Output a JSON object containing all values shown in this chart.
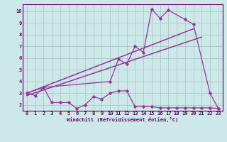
{
  "background_color": "#cce8e8",
  "grid_color": "#b0cccc",
  "line_color": "#993399",
  "xlim": [
    -0.5,
    23.5
  ],
  "ylim": [
    1.5,
    10.6
  ],
  "yticks": [
    2,
    3,
    4,
    5,
    6,
    7,
    8,
    9,
    10
  ],
  "xticks": [
    0,
    1,
    2,
    3,
    4,
    5,
    6,
    7,
    8,
    9,
    10,
    11,
    12,
    13,
    14,
    15,
    16,
    17,
    18,
    19,
    20,
    21,
    22,
    23
  ],
  "xlabel": "Windchill (Refroidissement éolien,°C)",
  "low_x": [
    0,
    1,
    2,
    3,
    4,
    5,
    6,
    7,
    8,
    9,
    10,
    11,
    12,
    13,
    14,
    15,
    16,
    17,
    18,
    19,
    20,
    21,
    22,
    23
  ],
  "low_y": [
    3.0,
    2.8,
    3.5,
    2.2,
    2.2,
    2.2,
    1.7,
    2.0,
    2.7,
    2.5,
    3.0,
    3.2,
    3.2,
    1.85,
    1.85,
    1.85,
    1.75,
    1.75,
    1.75,
    1.75,
    1.75,
    1.75,
    1.75,
    1.7
  ],
  "high_x": [
    0,
    2,
    10,
    11,
    12,
    13,
    14,
    15,
    16,
    17,
    19,
    20,
    22,
    23
  ],
  "high_y": [
    3.0,
    3.5,
    4.0,
    5.9,
    5.5,
    7.0,
    6.5,
    10.2,
    9.4,
    10.1,
    9.3,
    8.9,
    3.0,
    1.7
  ],
  "trend1_x": [
    0,
    20
  ],
  "trend1_y": [
    3.0,
    8.5
  ],
  "trend2_x": [
    0,
    21
  ],
  "trend2_y": [
    2.8,
    7.8
  ]
}
